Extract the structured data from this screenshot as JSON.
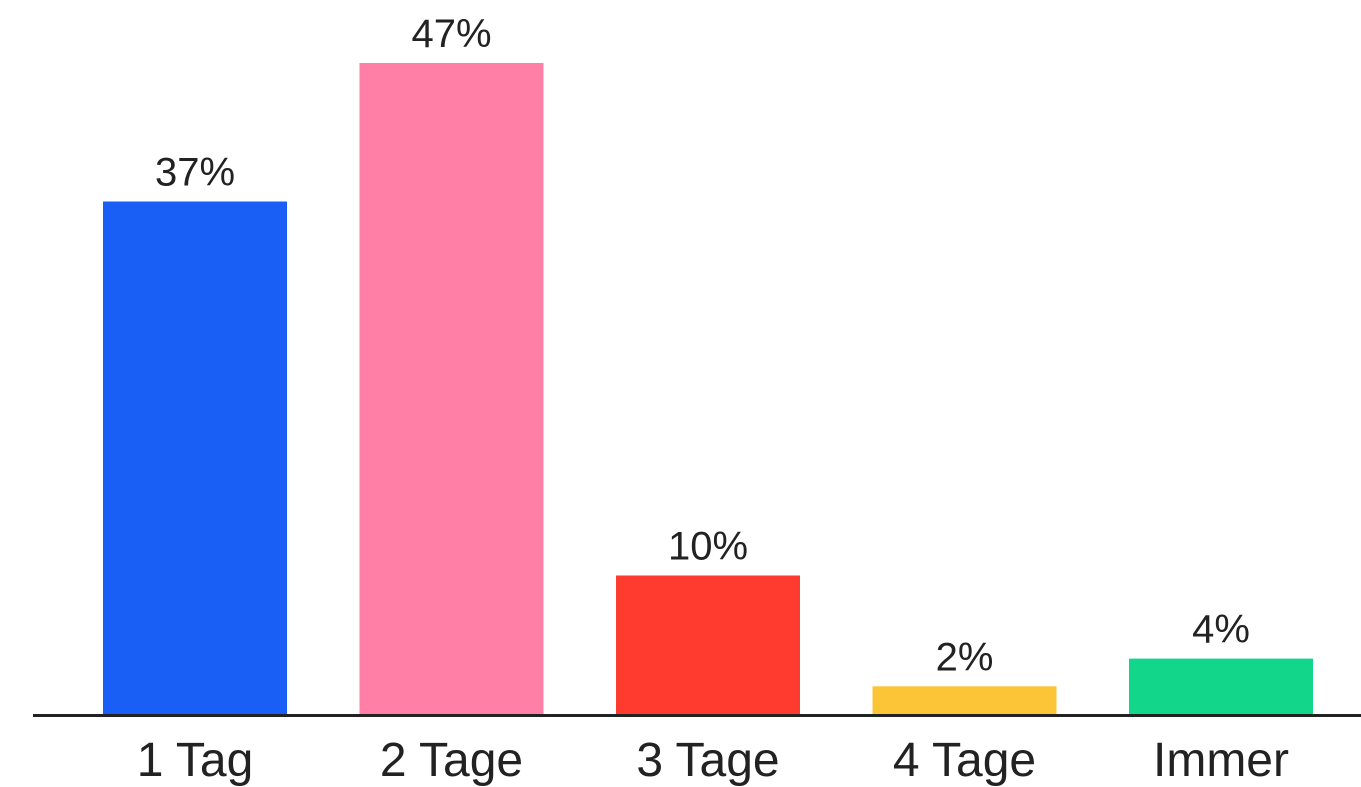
{
  "chart_data": {
    "type": "bar",
    "categories": [
      "1 Tag",
      "2 Tage",
      "3 Tage",
      "4 Tage",
      "Immer"
    ],
    "values": [
      37,
      47,
      10,
      2,
      4
    ],
    "value_labels": [
      "37%",
      "47%",
      "10%",
      "2%",
      "4%"
    ],
    "unit": "%",
    "colors": [
      "#1a5ff5",
      "#ff7fa6",
      "#ff3b30",
      "#fcc537",
      "#12d68a"
    ],
    "axis_color": "#222222",
    "title": "",
    "xlabel": "",
    "ylabel": "",
    "ylim": [
      0,
      47
    ],
    "grid": false,
    "legend": "none"
  }
}
